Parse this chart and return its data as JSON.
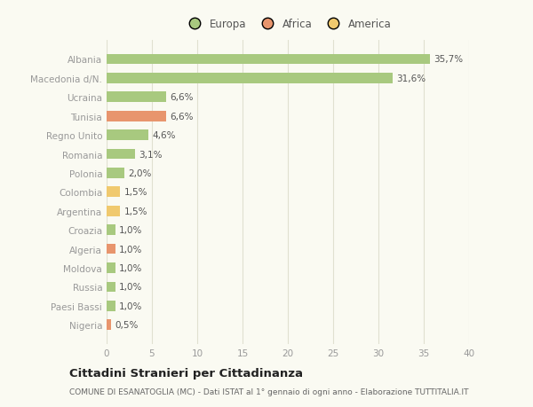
{
  "categories": [
    "Albania",
    "Macedonia d/N.",
    "Ucraina",
    "Tunisia",
    "Regno Unito",
    "Romania",
    "Polonia",
    "Colombia",
    "Argentina",
    "Croazia",
    "Algeria",
    "Moldova",
    "Russia",
    "Paesi Bassi",
    "Nigeria"
  ],
  "values": [
    35.7,
    31.6,
    6.6,
    6.6,
    4.6,
    3.1,
    2.0,
    1.5,
    1.5,
    1.0,
    1.0,
    1.0,
    1.0,
    1.0,
    0.5
  ],
  "labels": [
    "35,7%",
    "31,6%",
    "6,6%",
    "6,6%",
    "4,6%",
    "3,1%",
    "2,0%",
    "1,5%",
    "1,5%",
    "1,0%",
    "1,0%",
    "1,0%",
    "1,0%",
    "1,0%",
    "0,5%"
  ],
  "continent": [
    "Europa",
    "Europa",
    "Europa",
    "Africa",
    "Europa",
    "Europa",
    "Europa",
    "America",
    "America",
    "Europa",
    "Africa",
    "Europa",
    "Europa",
    "Europa",
    "Africa"
  ],
  "colors": {
    "Europa": "#a8c97f",
    "Africa": "#e8956d",
    "America": "#f0c96e"
  },
  "legend_order": [
    "Europa",
    "Africa",
    "America"
  ],
  "xlim": [
    0,
    40
  ],
  "xticks": [
    0,
    5,
    10,
    15,
    20,
    25,
    30,
    35,
    40
  ],
  "title": "Cittadini Stranieri per Cittadinanza",
  "subtitle": "COMUNE DI ESANATOGLIA (MC) - Dati ISTAT al 1° gennaio di ogni anno - Elaborazione TUTTITALIA.IT",
  "background_color": "#fafaf2",
  "grid_color": "#e0e0d0"
}
